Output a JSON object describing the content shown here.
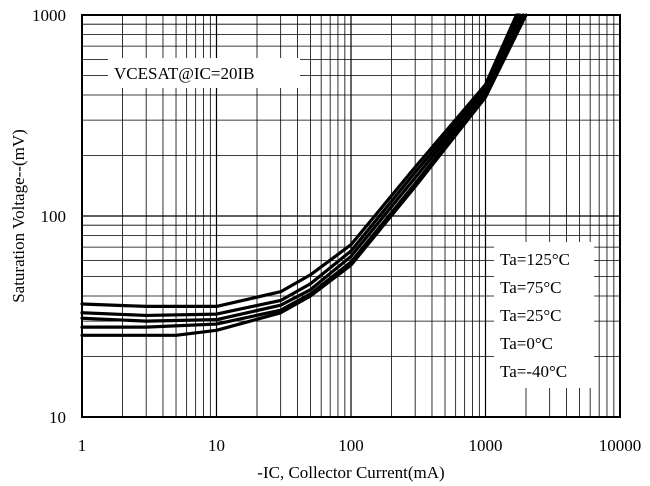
{
  "chart_data": {
    "type": "line",
    "x_scale": "log",
    "y_scale": "log",
    "xlim": [
      1,
      10000
    ],
    "ylim": [
      10,
      1000
    ],
    "grid": true,
    "xlabel": "-IC, Collector Current(mA)",
    "ylabel": "Saturation Voltage--(mV)",
    "x_ticks": [
      "1",
      "10",
      "100",
      "1000",
      "10000"
    ],
    "y_ticks": [
      "10",
      "100",
      "1000"
    ],
    "annotation": "VCESAT@IC=20IB",
    "legend": [
      "Ta=125°C",
      "Ta=75°C",
      "Ta=25°C",
      "Ta=0°C",
      "Ta=-40°C"
    ],
    "line_color": "#000000",
    "series": [
      {
        "x": [
          1,
          3,
          10,
          30,
          50,
          100,
          300,
          1000,
          1700
        ],
        "y": [
          36.5,
          35.5,
          35.5,
          42,
          51,
          72,
          175,
          450,
          1000
        ]
      },
      {
        "x": [
          1,
          3,
          10,
          30,
          50,
          100,
          300,
          1000,
          1750
        ],
        "y": [
          33,
          32,
          32.5,
          38,
          46,
          67,
          165,
          430,
          1000
        ]
      },
      {
        "x": [
          1,
          3,
          10,
          30,
          50,
          100,
          300,
          1000,
          1800
        ],
        "y": [
          31,
          30,
          30.5,
          36,
          43,
          63,
          155,
          415,
          1000
        ]
      },
      {
        "x": [
          1,
          3,
          10,
          30,
          50,
          100,
          300,
          1000,
          1900
        ],
        "y": [
          28,
          28,
          29,
          34,
          41,
          59,
          145,
          400,
          1000
        ]
      },
      {
        "x": [
          1,
          3,
          5,
          10,
          30,
          50,
          100,
          300,
          1000,
          2000
        ],
        "y": [
          25.5,
          25.5,
          25.5,
          27,
          33,
          40,
          57,
          140,
          390,
          1000
        ]
      }
    ]
  }
}
